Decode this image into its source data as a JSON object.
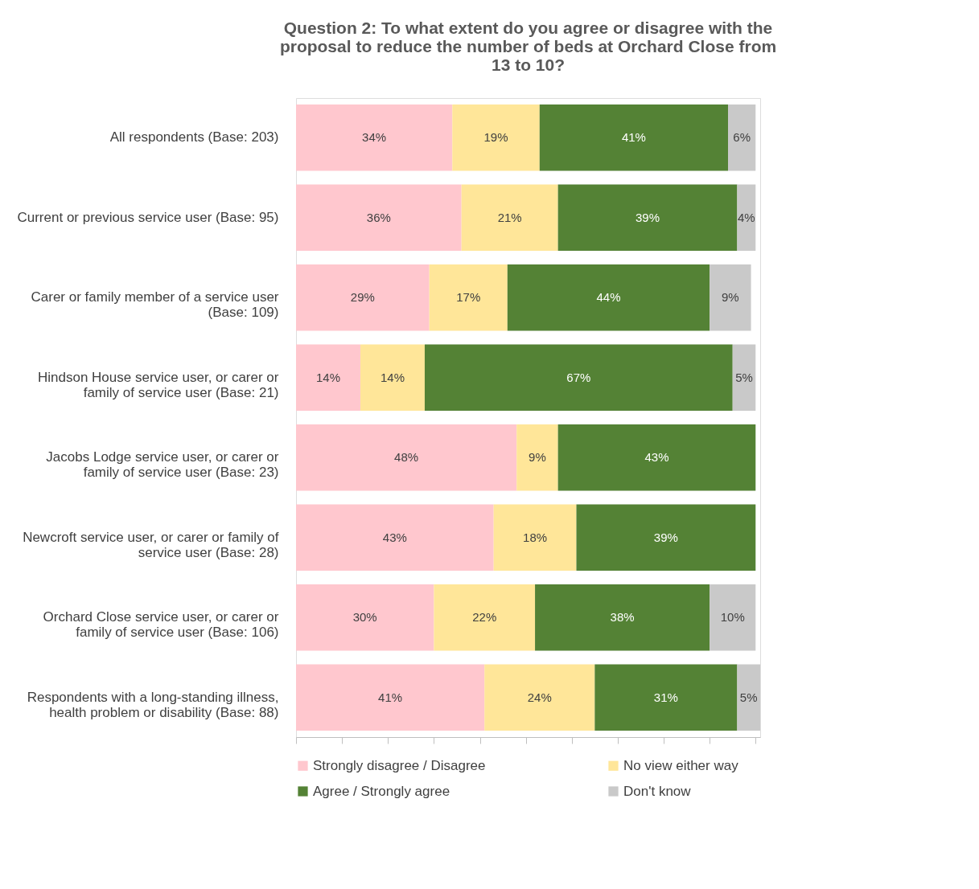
{
  "chart_data": {
    "type": "bar",
    "orientation": "horizontal",
    "stacked": true,
    "title": "Question 2: To what extent do you agree or disagree with the proposal to reduce the number of beds at Orchard Close from 13 to 10?",
    "categories": [
      "All respondents (Base: 203)",
      "Current or previous service user (Base: 95)",
      "Carer or family member of a service user (Base: 109)",
      "Hindson House service user, or carer or family of service user (Base: 21)",
      "Jacobs Lodge service user, or carer or family of service user (Base: 23)",
      "Newcroft service user, or carer or family of service user (Base: 28)",
      "Orchard Close service user, or carer or family of service user (Base: 106)",
      "Respondents with a long-standing illness, health problem or disability (Base: 88)"
    ],
    "series": [
      {
        "name": "Strongly disagree / Disagree",
        "color": "#ffc7ce",
        "values": [
          34,
          36,
          29,
          14,
          48,
          43,
          30,
          41
        ],
        "value_labels": [
          "34%",
          "36%",
          "29%",
          "14%",
          "48%",
          "43%",
          "30%",
          "41%"
        ]
      },
      {
        "name": "No view either way",
        "color": "#ffe699",
        "values": [
          19,
          21,
          17,
          14,
          9,
          18,
          22,
          24
        ],
        "value_labels": [
          "19%",
          "21%",
          "17%",
          "14%",
          "9%",
          "18%",
          "22%",
          "24%"
        ]
      },
      {
        "name": "Agree / Strongly agree",
        "color": "#548235",
        "values": [
          41,
          39,
          44,
          67,
          43,
          39,
          38,
          31
        ],
        "value_labels": [
          "41%",
          "39%",
          "44%",
          "67%",
          "43%",
          "39%",
          "38%",
          "31%"
        ]
      },
      {
        "name": "Don't know",
        "color": "#c9c9c9",
        "values": [
          6,
          4,
          9,
          5,
          null,
          null,
          10,
          5
        ],
        "value_labels": [
          "6%",
          "4%",
          "9%",
          "5%",
          null,
          null,
          "10%",
          "5%"
        ]
      }
    ],
    "tick_labels": "y",
    "grid": false,
    "legend": "bottom"
  }
}
